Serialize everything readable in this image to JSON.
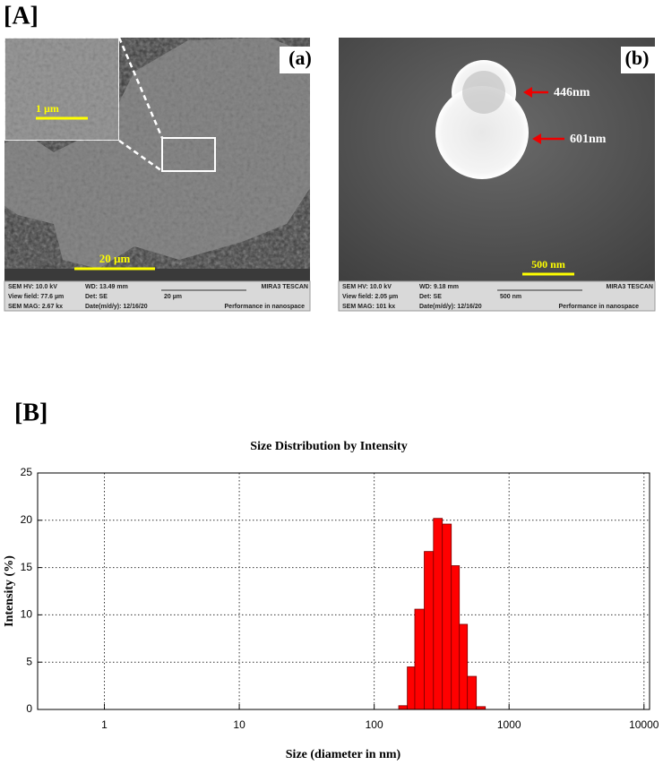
{
  "panel_a": {
    "label": "[A]",
    "image_a": {
      "label": "(a)",
      "inset_scale": "1 µm",
      "scale": "20 µm",
      "info": [
        "SEM HV: 10.0 kV",
        "WD: 13.49 mm",
        "MIRA3 TESCAN",
        "View field: 77.6 µm",
        "Det: SE",
        "20 µm",
        "SEM MAG: 2.67 kx",
        "Date(m/d/y): 12/16/20",
        "Performance in nanospace"
      ]
    },
    "image_b": {
      "label": "(b)",
      "scale": "500 nm",
      "annotations": [
        "446nm",
        "601nm"
      ],
      "info": [
        "SEM HV: 10.0 kV",
        "WD: 9.18 mm",
        "MIRA3 TESCAN",
        "View field: 2.05 µm",
        "Det: SE",
        "500 nm",
        "SEM MAG: 101 kx",
        "Date(m/d/y): 12/16/20",
        "Performance in nanospace"
      ]
    }
  },
  "panel_b_label": "[B]",
  "chart_data": {
    "type": "histogram",
    "title": "Size Distribution by Intensity",
    "x_label": "Size (diameter in nm)",
    "y_label": "Intensity (%)",
    "bins": [
      152,
      176,
      200,
      235,
      275,
      320,
      373,
      428,
      491,
      572,
      667
    ],
    "values": [
      0.4,
      4.5,
      10.6,
      16.7,
      20.2,
      19.6,
      15.2,
      9.0,
      3.5,
      0.3
    ],
    "color": "#ff0000",
    "xscale": "log",
    "xlim": [
      0.32,
      11000
    ],
    "xticks": [
      1,
      10,
      100,
      1000,
      10000
    ],
    "ylim": [
      0,
      25
    ],
    "yticks": [
      0,
      5,
      10,
      15,
      20,
      25
    ],
    "grid": true
  }
}
